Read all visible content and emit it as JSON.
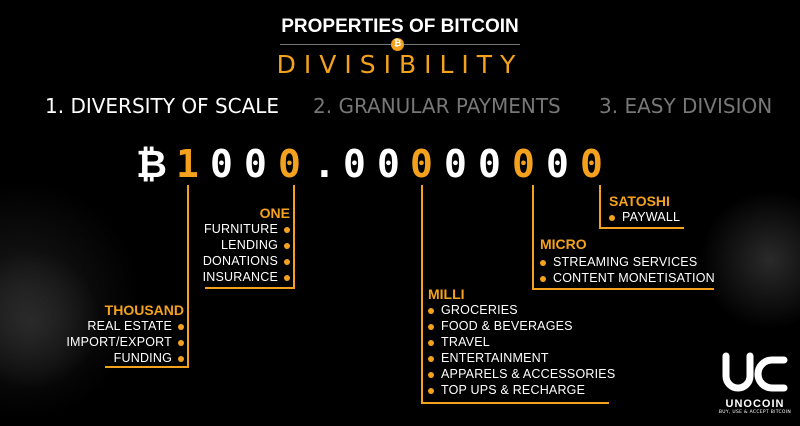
{
  "header": {
    "title": "PROPERTIES OF BITCOIN",
    "subtitle": "DIVISIBILITY",
    "coin_symbol": "₿"
  },
  "tabs": [
    {
      "label": "1. DIVERSITY OF SCALE",
      "active": true
    },
    {
      "label": "2. GRANULAR PAYMENTS",
      "active": false
    },
    {
      "label": "3. EASY DIVISION",
      "active": false
    }
  ],
  "number": {
    "symbol": "₿",
    "digits": [
      {
        "c": "1",
        "hi": true
      },
      {
        "c": "0",
        "hi": false
      },
      {
        "c": "0",
        "hi": false
      },
      {
        "c": "0",
        "hi": true
      },
      {
        "c": ".",
        "hi": false
      },
      {
        "c": "0",
        "hi": false
      },
      {
        "c": "0",
        "hi": false
      },
      {
        "c": "0",
        "hi": true
      },
      {
        "c": "0",
        "hi": false
      },
      {
        "c": "0",
        "hi": false
      },
      {
        "c": "0",
        "hi": true
      },
      {
        "c": "0",
        "hi": false
      },
      {
        "c": "0",
        "hi": true
      }
    ]
  },
  "groups": {
    "thousand": {
      "title": "THOUSAND",
      "items": [
        "REAL ESTATE",
        "IMPORT/EXPORT",
        "FUNDING"
      ]
    },
    "one": {
      "title": "ONE",
      "items": [
        "FURNITURE",
        "LENDING",
        "DONATIONS",
        "INSURANCE"
      ]
    },
    "milli": {
      "title": "MILLI",
      "items": [
        "GROCERIES",
        "FOOD & BEVERAGES",
        "TRAVEL",
        "ENTERTAINMENT",
        "APPARELS & ACCESSORIES",
        "TOP UPS & RECHARGE"
      ]
    },
    "micro": {
      "title": "MICRO",
      "items": [
        "STREAMING SERVICES",
        "CONTENT MONETISATION"
      ]
    },
    "satoshi": {
      "title": "SATOSHI",
      "items": [
        "PAYWALL"
      ]
    }
  },
  "logo": {
    "name": "UNOCOIN",
    "tagline": "BUY, USE & ACCEPT BITCOIN"
  },
  "colors": {
    "accent": "#f4a21e",
    "background": "#000000",
    "inactive_tab": "#777777"
  }
}
